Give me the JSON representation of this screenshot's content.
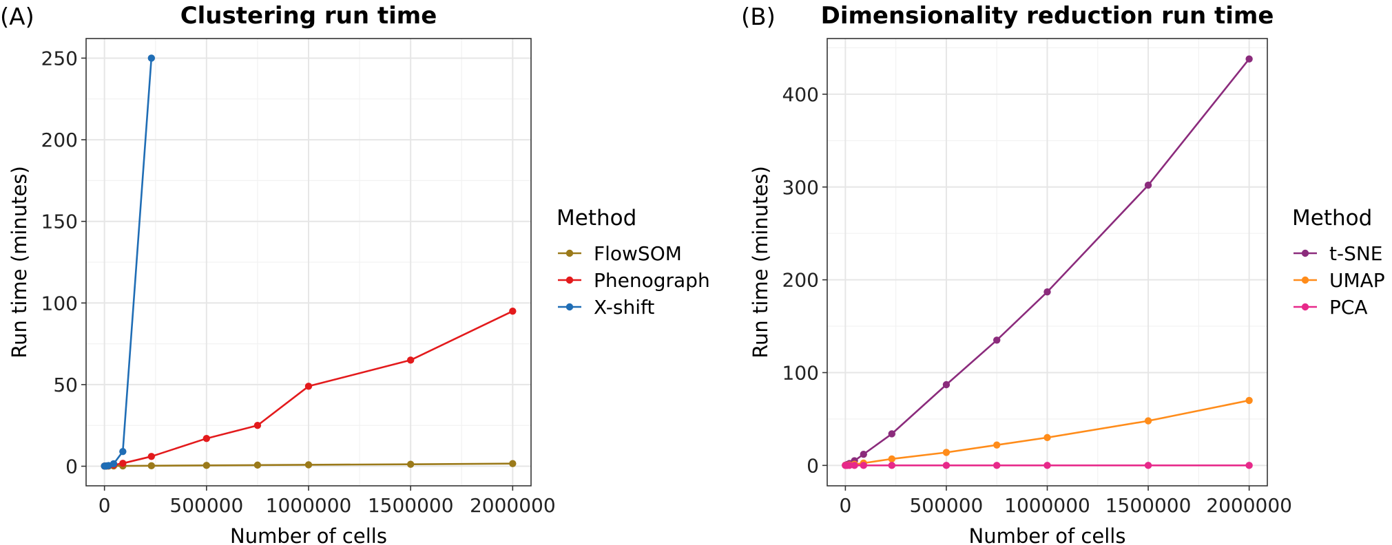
{
  "chart_data": [
    {
      "type": "line",
      "panel_label": "(A)",
      "title": "Clustering run time",
      "xlabel": "Number of cells",
      "ylabel": "Run time (minutes)",
      "xlim": [
        -90000,
        2090000
      ],
      "ylim": [
        -12,
        262
      ],
      "x_ticks": [
        0,
        500000,
        1000000,
        1500000,
        2000000
      ],
      "x_tick_labels": [
        "0",
        "500000",
        "1000000",
        "1500000",
        "2000000"
      ],
      "y_ticks": [
        0,
        50,
        100,
        150,
        200,
        250
      ],
      "y_tick_labels": [
        "0",
        "50",
        "100",
        "150",
        "200",
        "250"
      ],
      "grid": true,
      "legend": {
        "title": "Method",
        "position": "right"
      },
      "series": [
        {
          "name": "FlowSOM",
          "color": "#9b7a1a",
          "x": [
            0,
            5000,
            10000,
            20000,
            45000,
            90000,
            230000,
            500000,
            750000,
            1000000,
            1500000,
            2000000
          ],
          "y": [
            0.1,
            0.1,
            0.1,
            0.1,
            0.2,
            0.2,
            0.3,
            0.5,
            0.7,
            0.9,
            1.2,
            1.6
          ]
        },
        {
          "name": "Phenograph",
          "color": "#e31a1c",
          "x": [
            0,
            5000,
            10000,
            20000,
            45000,
            90000,
            230000,
            500000,
            750000,
            1000000,
            1500000,
            2000000
          ],
          "y": [
            0.1,
            0.1,
            0.2,
            0.3,
            0.8,
            1.8,
            6,
            17,
            25,
            49,
            65,
            95
          ]
        },
        {
          "name": "X-shift",
          "color": "#1f6db5",
          "x": [
            0,
            5000,
            10000,
            20000,
            45000,
            90000,
            230000
          ],
          "y": [
            0.1,
            0.1,
            0.2,
            0.4,
            1.5,
            9,
            250
          ]
        }
      ]
    },
    {
      "type": "line",
      "panel_label": "(B)",
      "title": "Dimensionality reduction run time",
      "xlabel": "Number of cells",
      "ylabel": "Run time (minutes)",
      "xlim": [
        -90000,
        2090000
      ],
      "ylim": [
        -22,
        460
      ],
      "x_ticks": [
        0,
        500000,
        1000000,
        1500000,
        2000000
      ],
      "x_tick_labels": [
        "0",
        "500000",
        "1000000",
        "1500000",
        "2000000"
      ],
      "y_ticks": [
        0,
        100,
        200,
        300,
        400
      ],
      "y_tick_labels": [
        "0",
        "100",
        "200",
        "300",
        "400"
      ],
      "grid": true,
      "legend": {
        "title": "Method",
        "position": "right"
      },
      "series": [
        {
          "name": "t-SNE",
          "color": "#8b2b7c",
          "x": [
            0,
            5000,
            10000,
            20000,
            45000,
            90000,
            230000,
            500000,
            750000,
            1000000,
            1500000,
            2000000
          ],
          "y": [
            0.2,
            0.5,
            1,
            2,
            5,
            12,
            34,
            87,
            135,
            187,
            302,
            438
          ]
        },
        {
          "name": "UMAP",
          "color": "#ff8c1a",
          "x": [
            0,
            5000,
            10000,
            20000,
            45000,
            90000,
            230000,
            500000,
            750000,
            1000000,
            1500000,
            2000000
          ],
          "y": [
            0.1,
            0.2,
            0.3,
            0.6,
            1.2,
            2.5,
            7,
            14,
            22,
            30,
            48,
            70
          ]
        },
        {
          "name": "PCA",
          "color": "#e7298a",
          "x": [
            0,
            5000,
            10000,
            20000,
            45000,
            90000,
            230000,
            500000,
            750000,
            1000000,
            1500000,
            2000000
          ],
          "y": [
            0,
            0,
            0,
            0,
            0,
            0,
            0,
            0,
            0,
            0,
            0,
            0
          ]
        }
      ]
    }
  ]
}
